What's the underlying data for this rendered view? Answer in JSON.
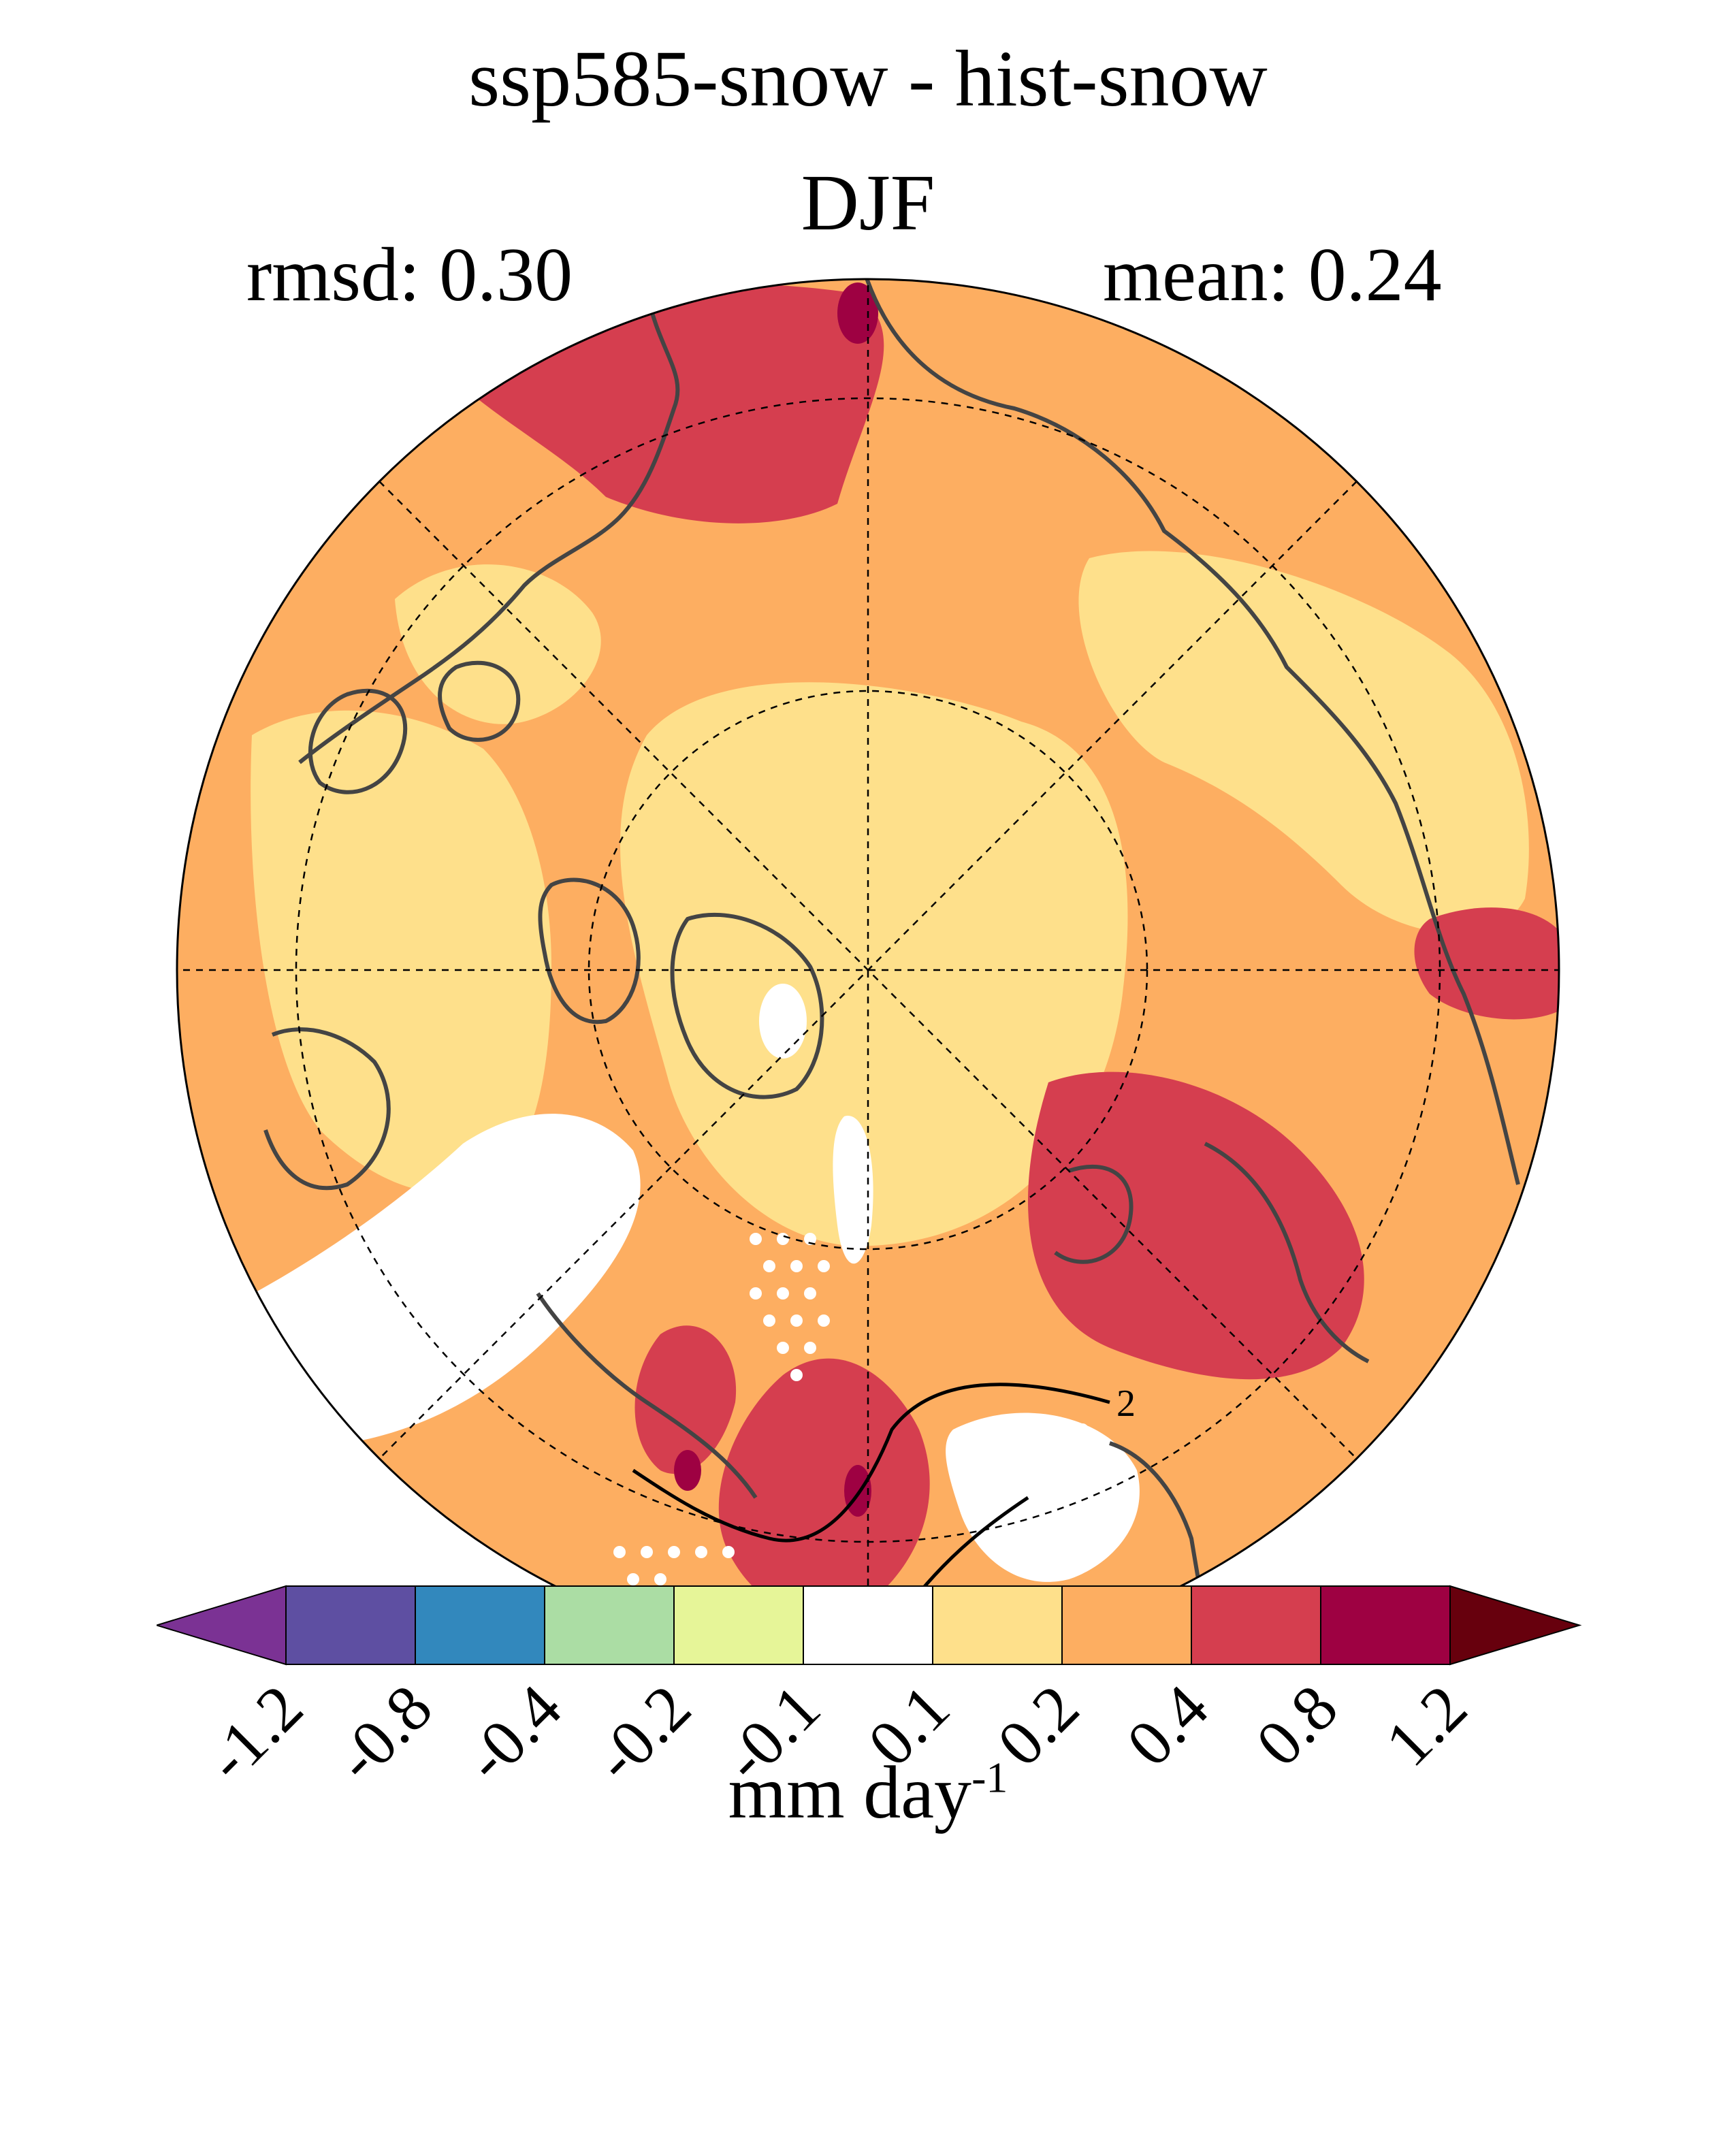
{
  "title": "ssp585-snow - hist-snow",
  "season": "DJF",
  "stats": {
    "rmsd": "rmsd: 0.30",
    "mean": "mean: 0.24"
  },
  "projection": "north polar stereographic",
  "units": {
    "base": "mm day",
    "exponent": "-1"
  },
  "contour_label": "2",
  "colorbar": {
    "levels": [
      "-1.2",
      "-0.8",
      "-0.4",
      "-0.2",
      "-0.1",
      "0.1",
      "0.2",
      "0.4",
      "0.8",
      "1.2"
    ],
    "colors": [
      "#5e4fa2",
      "#3288bd",
      "#abdda4",
      "#e6f598",
      "#ffffff",
      "#fee08b",
      "#fdae61",
      "#d53e4f",
      "#9e0142"
    ],
    "under_color": "#7b3294",
    "over_color": "#67000d",
    "extend": "both"
  },
  "legend_colors": {
    "land_outline": "#444444",
    "contour": "#000000",
    "stipple": "#ffffff"
  }
}
